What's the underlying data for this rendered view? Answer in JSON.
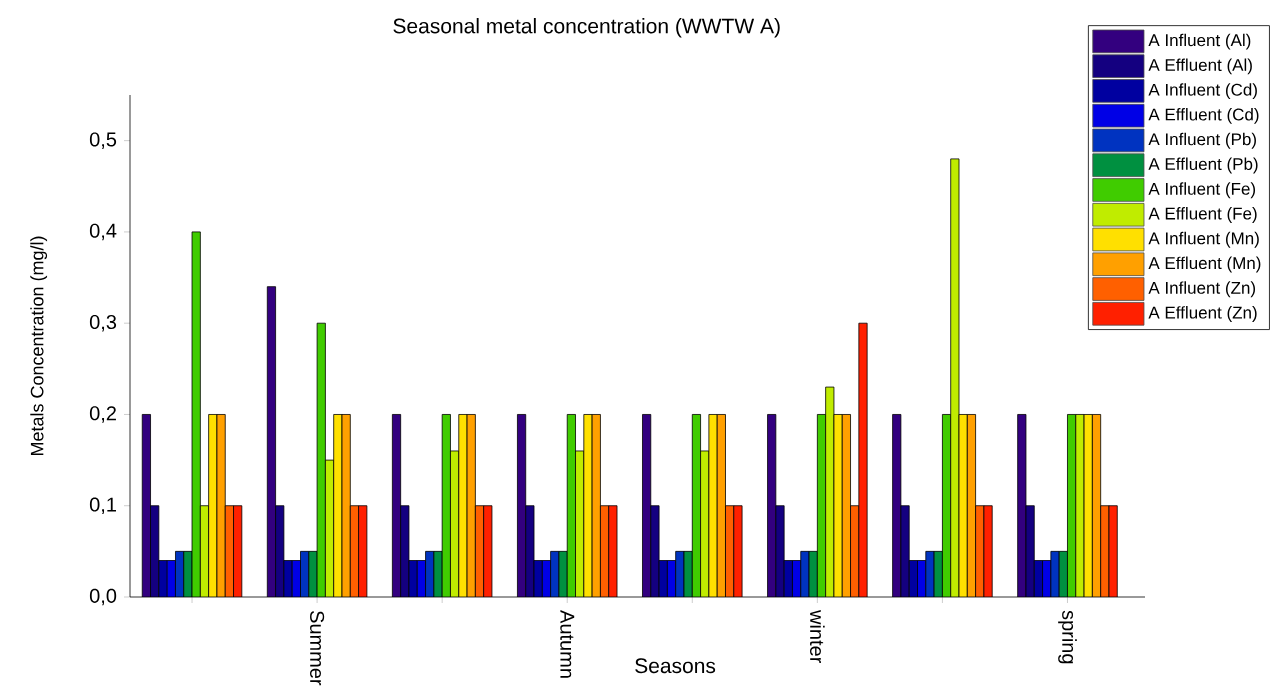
{
  "chart_data": {
    "type": "bar",
    "title": "Seasonal metal concentration (WWTW A)",
    "xlabel": "Seasons",
    "ylabel": "Metals Concentration (mg/l)",
    "categories": [
      null,
      "Summer",
      null,
      "Autumn",
      null,
      "winter",
      null,
      "spring"
    ],
    "ylim": [
      0,
      0.55
    ],
    "yticks": [
      {
        "value": 0,
        "label": "0,0"
      },
      {
        "value": 0.1,
        "label": "0,1"
      },
      {
        "value": 0.2,
        "label": "0,2"
      },
      {
        "value": 0.3,
        "label": "0,3"
      },
      {
        "value": 0.4,
        "label": "0,4"
      },
      {
        "value": 0.5,
        "label": "0,5"
      }
    ],
    "legend": "top right",
    "series": [
      {
        "name": "A Influent (Al)",
        "color": "#33007f",
        "values": [
          0.2,
          0.34,
          0.2,
          0.2,
          0.2,
          0.2,
          0.2,
          0.2
        ]
      },
      {
        "name": "A Effluent (Al)",
        "color": "#140080",
        "values": [
          0.1,
          0.1,
          0.1,
          0.1,
          0.1,
          0.1,
          0.1,
          0.1
        ]
      },
      {
        "name": "A Influent (Cd)",
        "color": "#0000a0",
        "values": [
          0.04,
          0.04,
          0.04,
          0.04,
          0.04,
          0.04,
          0.04,
          0.04
        ]
      },
      {
        "name": "A Effluent (Cd)",
        "color": "#0000e6",
        "values": [
          0.04,
          0.04,
          0.04,
          0.04,
          0.04,
          0.04,
          0.04,
          0.04
        ]
      },
      {
        "name": "A Influent (Pb)",
        "color": "#0033c0",
        "values": [
          0.05,
          0.05,
          0.05,
          0.05,
          0.05,
          0.05,
          0.05,
          0.05
        ]
      },
      {
        "name": "A Effluent (Pb)",
        "color": "#009040",
        "values": [
          0.05,
          0.05,
          0.05,
          0.05,
          0.05,
          0.05,
          0.05,
          0.05
        ]
      },
      {
        "name": "A Influent (Fe)",
        "color": "#40cc00",
        "values": [
          0.4,
          0.3,
          0.2,
          0.2,
          0.2,
          0.2,
          0.2,
          0.2
        ]
      },
      {
        "name": "A Effluent (Fe)",
        "color": "#c0ec00",
        "values": [
          0.1,
          0.15,
          0.16,
          0.16,
          0.16,
          0.23,
          0.48,
          0.2
        ]
      },
      {
        "name": "A Influent (Mn)",
        "color": "#ffe000",
        "values": [
          0.2,
          0.2,
          0.2,
          0.2,
          0.2,
          0.2,
          0.2,
          0.2
        ]
      },
      {
        "name": "A Effluent (Mn)",
        "color": "#ffa000",
        "values": [
          0.2,
          0.2,
          0.2,
          0.2,
          0.2,
          0.2,
          0.2,
          0.2
        ]
      },
      {
        "name": "A Influent (Zn)",
        "color": "#ff6000",
        "values": [
          0.1,
          0.1,
          0.1,
          0.1,
          0.1,
          0.1,
          0.1,
          0.1
        ]
      },
      {
        "name": "A Effluent (Zn)",
        "color": "#ff2000",
        "values": [
          0.1,
          0.1,
          0.1,
          0.1,
          0.1,
          0.3,
          0.1,
          0.1
        ]
      }
    ]
  }
}
